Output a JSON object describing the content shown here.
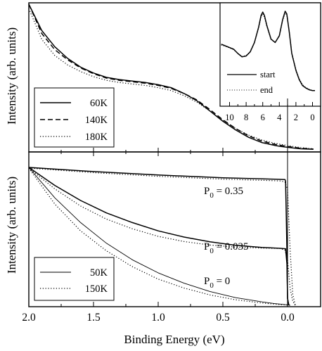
{
  "chart_data": [
    {
      "type": "line",
      "panel": "top",
      "ylabel": "Intensity (arb. units)",
      "x_axis": "shared binding energy axis (eV), plotted decreasing from 2.0 to 0.0; no tick labels on this panel",
      "xlim": [
        2.0,
        -0.25
      ],
      "y_units": "arbitrary (ticks unlabeled)",
      "legend": {
        "placement": "bottom-left",
        "entries": [
          "60K",
          "140K",
          "180K"
        ],
        "styles": [
          "solid",
          "dashed",
          "dotted"
        ]
      },
      "series": [
        {
          "name": "60K",
          "style": "solid",
          "x": [
            2.0,
            1.9,
            1.8,
            1.7,
            1.6,
            1.5,
            1.4,
            1.3,
            1.2,
            1.1,
            1.0,
            0.9,
            0.8,
            0.7,
            0.6,
            0.5,
            0.4,
            0.3,
            0.2,
            0.1,
            0.05,
            0.0,
            -0.05,
            -0.1,
            -0.2
          ],
          "y": [
            1.0,
            0.82,
            0.71,
            0.63,
            0.57,
            0.53,
            0.5,
            0.485,
            0.475,
            0.465,
            0.45,
            0.43,
            0.39,
            0.34,
            0.27,
            0.2,
            0.14,
            0.09,
            0.055,
            0.035,
            0.028,
            0.022,
            0.017,
            0.012,
            0.008
          ]
        },
        {
          "name": "140K",
          "style": "dashed",
          "x": [
            2.0,
            1.9,
            1.8,
            1.7,
            1.6,
            1.5,
            1.4,
            1.3,
            1.2,
            1.1,
            1.0,
            0.9,
            0.8,
            0.7,
            0.6,
            0.5,
            0.4,
            0.3,
            0.2,
            0.1,
            0.05,
            0.0,
            -0.05,
            -0.1,
            -0.2
          ],
          "y": [
            1.0,
            0.8,
            0.69,
            0.62,
            0.565,
            0.525,
            0.495,
            0.48,
            0.47,
            0.46,
            0.445,
            0.425,
            0.39,
            0.345,
            0.28,
            0.21,
            0.15,
            0.1,
            0.065,
            0.043,
            0.035,
            0.028,
            0.022,
            0.016,
            0.01
          ]
        },
        {
          "name": "180K",
          "style": "dotted",
          "x": [
            2.0,
            1.9,
            1.8,
            1.7,
            1.6,
            1.5,
            1.4,
            1.3,
            1.2,
            1.1,
            1.0,
            0.9,
            0.8,
            0.7,
            0.6,
            0.5,
            0.4,
            0.3,
            0.2,
            0.1,
            0.05,
            0.0,
            -0.05,
            -0.1,
            -0.2
          ],
          "y": [
            0.97,
            0.76,
            0.65,
            0.585,
            0.54,
            0.505,
            0.48,
            0.465,
            0.455,
            0.445,
            0.43,
            0.41,
            0.375,
            0.33,
            0.27,
            0.205,
            0.15,
            0.105,
            0.072,
            0.05,
            0.042,
            0.034,
            0.027,
            0.02,
            0.012
          ]
        }
      ]
    },
    {
      "type": "line",
      "panel": "inset",
      "x_ticks": [
        "10",
        "8",
        "6",
        "4",
        "2",
        "0"
      ],
      "xlim": [
        11.5,
        -0.5
      ],
      "y_units": "arbitrary (ticks unlabeled)",
      "legend": {
        "placement": "bottom-right",
        "entries": [
          "start",
          "end"
        ],
        "styles": [
          "solid",
          "dotted"
        ]
      },
      "series": [
        {
          "name": "start",
          "style": "solid",
          "x": [
            11.0,
            10.5,
            10.0,
            9.5,
            9.0,
            8.5,
            8.0,
            7.5,
            7.0,
            6.5,
            6.2,
            6.0,
            5.8,
            5.5,
            5.0,
            4.5,
            4.0,
            3.6,
            3.3,
            3.1,
            2.8,
            2.5,
            2.0,
            1.6,
            1.2,
            0.8,
            0.4,
            0.0,
            -0.3
          ],
          "y": [
            0.56,
            0.54,
            0.52,
            0.5,
            0.45,
            0.41,
            0.42,
            0.47,
            0.58,
            0.76,
            0.9,
            0.94,
            0.9,
            0.78,
            0.62,
            0.58,
            0.66,
            0.85,
            0.95,
            0.92,
            0.7,
            0.45,
            0.25,
            0.14,
            0.07,
            0.04,
            0.02,
            0.01,
            0.01
          ]
        },
        {
          "name": "end",
          "style": "dotted",
          "x": [
            11.0,
            10.5,
            10.0,
            9.5,
            9.0,
            8.5,
            8.0,
            7.5,
            7.0,
            6.5,
            6.2,
            6.0,
            5.8,
            5.5,
            5.0,
            4.5,
            4.0,
            3.6,
            3.3,
            3.1,
            2.8,
            2.5,
            2.0,
            1.6,
            1.2,
            0.8,
            0.4,
            0.0,
            -0.3
          ],
          "y": [
            0.55,
            0.535,
            0.515,
            0.495,
            0.45,
            0.415,
            0.425,
            0.475,
            0.58,
            0.75,
            0.88,
            0.92,
            0.88,
            0.77,
            0.615,
            0.58,
            0.655,
            0.84,
            0.93,
            0.905,
            0.7,
            0.46,
            0.26,
            0.15,
            0.08,
            0.045,
            0.025,
            0.012,
            0.01
          ]
        }
      ]
    },
    {
      "type": "line",
      "panel": "bottom",
      "xlabel": "Binding Energy (eV)",
      "ylabel": "Intensity (arb. units)",
      "x_ticks": [
        "2.0",
        "1.5",
        "1.0",
        "0.5",
        "0.0"
      ],
      "xlim": [
        2.0,
        -0.25
      ],
      "y_units": "arbitrary (ticks unlabeled)",
      "legend": {
        "placement": "bottom-left",
        "entries": [
          "50K",
          "150K"
        ],
        "styles": [
          "solid",
          "dotted"
        ]
      },
      "series": [
        {
          "group": "P0 = 0.35",
          "style": "solid",
          "stroke": 1.5,
          "x": [
            2.0,
            1.5,
            1.0,
            0.5,
            0.1,
            0.04,
            0.02,
            0.015,
            0.005,
            0.0,
            -0.01
          ],
          "y": [
            1.0,
            0.97,
            0.945,
            0.925,
            0.915,
            0.913,
            0.912,
            0.9,
            0.4,
            0.05,
            0.0
          ]
        },
        {
          "group": "P0 = 0.35",
          "style": "dotted",
          "stroke": 1.2,
          "x": [
            2.0,
            1.5,
            1.0,
            0.5,
            0.15,
            0.06,
            0.02,
            0.0,
            -0.02,
            -0.04,
            -0.06
          ],
          "y": [
            0.995,
            0.962,
            0.935,
            0.915,
            0.905,
            0.902,
            0.895,
            0.84,
            0.4,
            0.08,
            0.0
          ]
        },
        {
          "group": "P0 = 0.035",
          "style": "solid",
          "stroke": 1.5,
          "x": [
            2.0,
            1.8,
            1.6,
            1.4,
            1.2,
            1.0,
            0.8,
            0.6,
            0.4,
            0.2,
            0.05,
            0.015,
            0.005,
            0.0,
            -0.01
          ],
          "y": [
            1.0,
            0.87,
            0.76,
            0.67,
            0.6,
            0.54,
            0.495,
            0.46,
            0.435,
            0.42,
            0.413,
            0.41,
            0.3,
            0.05,
            0.0
          ]
        },
        {
          "group": "P0 = 0.035",
          "style": "dotted",
          "stroke": 1.2,
          "x": [
            2.0,
            1.8,
            1.6,
            1.4,
            1.2,
            1.0,
            0.8,
            0.6,
            0.4,
            0.2,
            0.06,
            0.02,
            0.0,
            -0.02,
            -0.04,
            -0.06
          ],
          "y": [
            0.995,
            0.845,
            0.72,
            0.625,
            0.555,
            0.5,
            0.462,
            0.437,
            0.422,
            0.415,
            0.412,
            0.4,
            0.33,
            0.12,
            0.03,
            0.0
          ]
        },
        {
          "group": "P0 = 0",
          "style": "solid",
          "stroke": 0.9,
          "x": [
            2.0,
            1.8,
            1.6,
            1.4,
            1.2,
            1.0,
            0.8,
            0.6,
            0.4,
            0.2,
            0.1,
            0.03,
            0.0,
            -0.02
          ],
          "y": [
            1.0,
            0.78,
            0.6,
            0.45,
            0.33,
            0.235,
            0.16,
            0.1,
            0.055,
            0.025,
            0.012,
            0.006,
            0.003,
            0.0
          ]
        },
        {
          "group": "P0 = 0",
          "style": "dotted",
          "stroke": 1.2,
          "x": [
            2.0,
            1.8,
            1.6,
            1.4,
            1.2,
            1.0,
            0.8,
            0.6,
            0.4,
            0.2,
            0.1,
            0.03,
            0.0,
            -0.03
          ],
          "y": [
            0.995,
            0.735,
            0.54,
            0.395,
            0.28,
            0.19,
            0.125,
            0.075,
            0.04,
            0.017,
            0.008,
            0.004,
            0.002,
            0.0
          ]
        }
      ],
      "annotations": [
        {
          "base": "P",
          "sub": "0",
          "value": " = 0.35"
        },
        {
          "base": "P",
          "sub": "0",
          "value": " = 0.035"
        },
        {
          "base": "P",
          "sub": "0",
          "value": " = 0"
        }
      ]
    }
  ]
}
